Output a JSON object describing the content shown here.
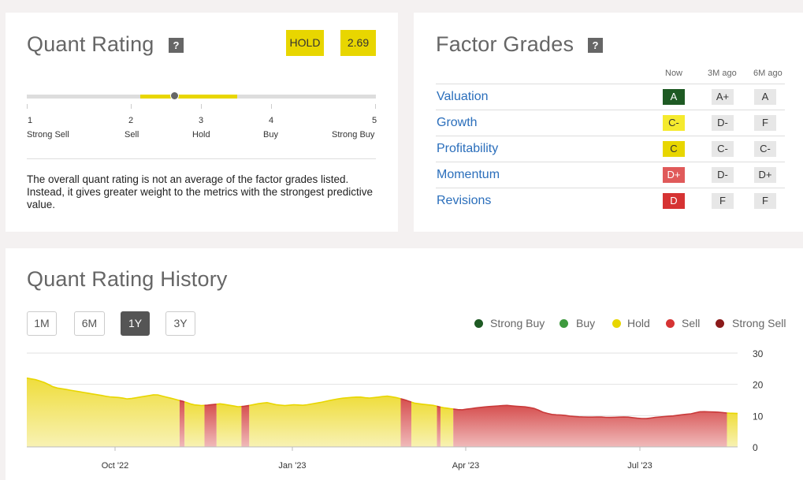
{
  "quant": {
    "title": "Quant Rating",
    "help": "?",
    "rating_label": "HOLD",
    "score": "2.69",
    "score_value": 2.69,
    "scale": [
      {
        "num": "1",
        "label": "Strong Sell"
      },
      {
        "num": "2",
        "label": "Sell"
      },
      {
        "num": "3",
        "label": "Hold"
      },
      {
        "num": "4",
        "label": "Buy"
      },
      {
        "num": "5",
        "label": "Strong Buy"
      }
    ],
    "hold_band": [
      2.5,
      3.5
    ],
    "description": "The overall quant rating is not an average of the factor grades listed. Instead, it gives greater weight to the metrics with the strongest predictive value."
  },
  "factor": {
    "title": "Factor Grades",
    "help": "?",
    "headers": {
      "now": "Now",
      "m3": "3M ago",
      "m6": "6M ago"
    },
    "rows": [
      {
        "name": "Valuation",
        "now": "A",
        "now_color": "#1e5a23",
        "now_text": "#ffffff",
        "m3": "A+",
        "m6": "A"
      },
      {
        "name": "Growth",
        "now": "C-",
        "now_color": "#f5ea2e",
        "now_text": "#333333",
        "m3": "D-",
        "m6": "F"
      },
      {
        "name": "Profitability",
        "now": "C",
        "now_color": "#e8d600",
        "now_text": "#333333",
        "m3": "C-",
        "m6": "C-"
      },
      {
        "name": "Momentum",
        "now": "D+",
        "now_color": "#e05a5a",
        "now_text": "#ffffff",
        "m3": "D-",
        "m6": "D+"
      },
      {
        "name": "Revisions",
        "now": "D",
        "now_color": "#d63333",
        "now_text": "#ffffff",
        "m3": "F",
        "m6": "F"
      }
    ]
  },
  "history": {
    "title": "Quant Rating History",
    "ranges": [
      "1M",
      "6M",
      "1Y",
      "3Y"
    ],
    "active_range": "1Y",
    "legend": [
      {
        "label": "Strong Buy",
        "color": "#1e5a23"
      },
      {
        "label": "Buy",
        "color": "#3e9a3e"
      },
      {
        "label": "Hold",
        "color": "#e8d600"
      },
      {
        "label": "Sell",
        "color": "#d63333"
      },
      {
        "label": "Strong Sell",
        "color": "#8b1a1a"
      }
    ]
  },
  "chart_data": {
    "type": "area",
    "y_ticks": [
      "30",
      "20",
      "10",
      "0"
    ],
    "ylim": [
      0,
      30
    ],
    "x_ticks": [
      "Oct '22",
      "Jan '23",
      "Apr '23",
      "Jul '23"
    ],
    "colors": {
      "hold_fill": "#f3e66a",
      "hold_line": "#e8d600",
      "sell_fill": "#e07b7b",
      "sell_line": "#c93a3a"
    },
    "points": [
      22,
      21.5,
      20.5,
      19,
      18.5,
      18,
      17.5,
      17,
      16.5,
      16,
      15.8,
      15.3,
      15.8,
      16.3,
      16.8,
      16,
      15.3,
      14.5,
      13.5,
      13.2,
      13.5,
      13.8,
      13.3,
      12.8,
      13.2,
      13.8,
      14.2,
      13.5,
      13.2,
      13.5,
      13.3,
      13.8,
      14.3,
      15,
      15.5,
      15.8,
      16,
      15.6,
      15.9,
      16.3,
      15.8,
      15,
      14,
      13.6,
      13.3,
      12.6,
      12.2,
      11.8,
      12.2,
      12.6,
      12.9,
      13.1,
      13.3,
      13,
      12.8,
      12.3,
      11,
      10.3,
      10.2,
      9.8,
      9.6,
      9.5,
      9.6,
      9.4,
      9.5,
      9.6,
      9.2,
      9,
      9.4,
      9.7,
      9.9,
      10.3,
      10.6,
      11.3,
      11.2,
      11.1,
      10.8,
      10.7
    ],
    "segments": [
      {
        "rating": "hold",
        "from": 0,
        "to": 0.215
      },
      {
        "rating": "sell",
        "from": 0.215,
        "to": 0.222
      },
      {
        "rating": "hold",
        "from": 0.222,
        "to": 0.25
      },
      {
        "rating": "sell",
        "from": 0.25,
        "to": 0.267
      },
      {
        "rating": "hold",
        "from": 0.267,
        "to": 0.302
      },
      {
        "rating": "sell",
        "from": 0.302,
        "to": 0.313
      },
      {
        "rating": "hold",
        "from": 0.313,
        "to": 0.526
      },
      {
        "rating": "sell",
        "from": 0.526,
        "to": 0.541
      },
      {
        "rating": "hold",
        "from": 0.541,
        "to": 0.577
      },
      {
        "rating": "sell",
        "from": 0.577,
        "to": 0.582
      },
      {
        "rating": "hold",
        "from": 0.582,
        "to": 0.6
      },
      {
        "rating": "sell",
        "from": 0.6,
        "to": 0.985
      },
      {
        "rating": "hold",
        "from": 0.985,
        "to": 1
      }
    ]
  }
}
